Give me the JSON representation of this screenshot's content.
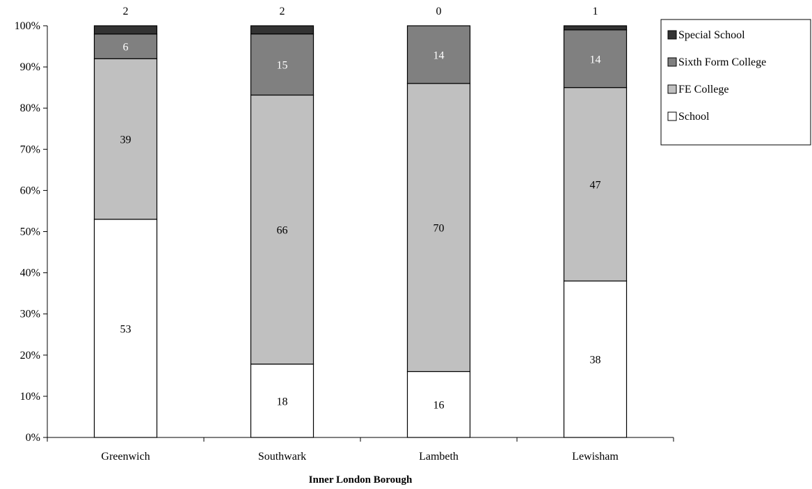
{
  "chart_data": {
    "type": "bar",
    "stacked": true,
    "percent_stacked": true,
    "categories": [
      "Greenwich",
      "Southwark",
      "Lambeth",
      "Lewisham"
    ],
    "series": [
      {
        "name": "School",
        "values": [
          53,
          18,
          16,
          38
        ],
        "color": "#ffffff",
        "label_color": "#000000"
      },
      {
        "name": "FE College",
        "values": [
          39,
          66,
          70,
          47
        ],
        "color": "#c0c0c0",
        "label_color": "#000000"
      },
      {
        "name": "Sixth Form College",
        "values": [
          6,
          15,
          14,
          14
        ],
        "color": "#808080",
        "label_color": "#ffffff"
      },
      {
        "name": "Special School",
        "values": [
          2,
          2,
          0,
          1
        ],
        "color": "#333333",
        "label_color": "#000000"
      }
    ],
    "xlabel": "Inner London Borough",
    "ylabel": "",
    "ylim": [
      0,
      100
    ],
    "yticks": [
      "0%",
      "10%",
      "20%",
      "30%",
      "40%",
      "50%",
      "60%",
      "70%",
      "80%",
      "90%",
      "100%"
    ],
    "grid": false,
    "legend_position": "top-right",
    "legend_order": [
      "Special School",
      "Sixth Form College",
      "FE College",
      "School"
    ],
    "special_labels_above_bar": true
  }
}
